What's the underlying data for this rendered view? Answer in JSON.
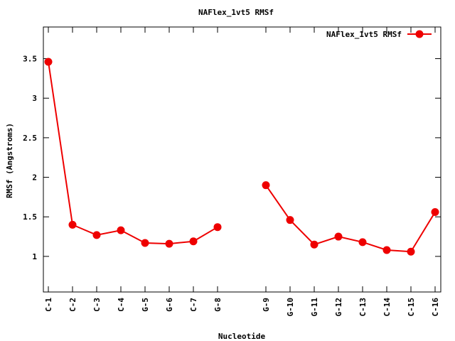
{
  "chart_data": {
    "type": "line",
    "title": "NAFlex_1vt5 RMSf",
    "xlabel": "Nucleotide",
    "ylabel": "RMSf (Angstroms)",
    "ylim": [
      0.55,
      3.9
    ],
    "yticks": [
      1,
      1.5,
      2,
      2.5,
      3,
      3.5
    ],
    "ytick_labels": [
      "1",
      "1.5",
      "2",
      "2.5",
      "3",
      "3.5"
    ],
    "grid": false,
    "legend_position": "top-right",
    "series": [
      {
        "name": "NAFlex_1vt5 RMSf",
        "color": "#ee0000",
        "segments": [
          {
            "x": [
              "C-1",
              "C-2",
              "C-3",
              "C-4",
              "G-5",
              "G-6",
              "C-7",
              "G-8"
            ],
            "y": [
              3.46,
              1.4,
              1.27,
              1.33,
              1.17,
              1.16,
              1.19,
              1.37
            ]
          },
          {
            "x": [
              "G-9",
              "G-10",
              "G-11",
              "G-12",
              "C-13",
              "C-14",
              "C-15",
              "C-16"
            ],
            "y": [
              1.9,
              1.46,
              1.15,
              1.25,
              1.18,
              1.08,
              1.06,
              1.56
            ]
          }
        ]
      }
    ],
    "categories": [
      "C-1",
      "C-2",
      "C-3",
      "C-4",
      "G-5",
      "G-6",
      "C-7",
      "G-8",
      "G-9",
      "G-10",
      "G-11",
      "G-12",
      "C-13",
      "C-14",
      "C-15",
      "C-16"
    ]
  }
}
